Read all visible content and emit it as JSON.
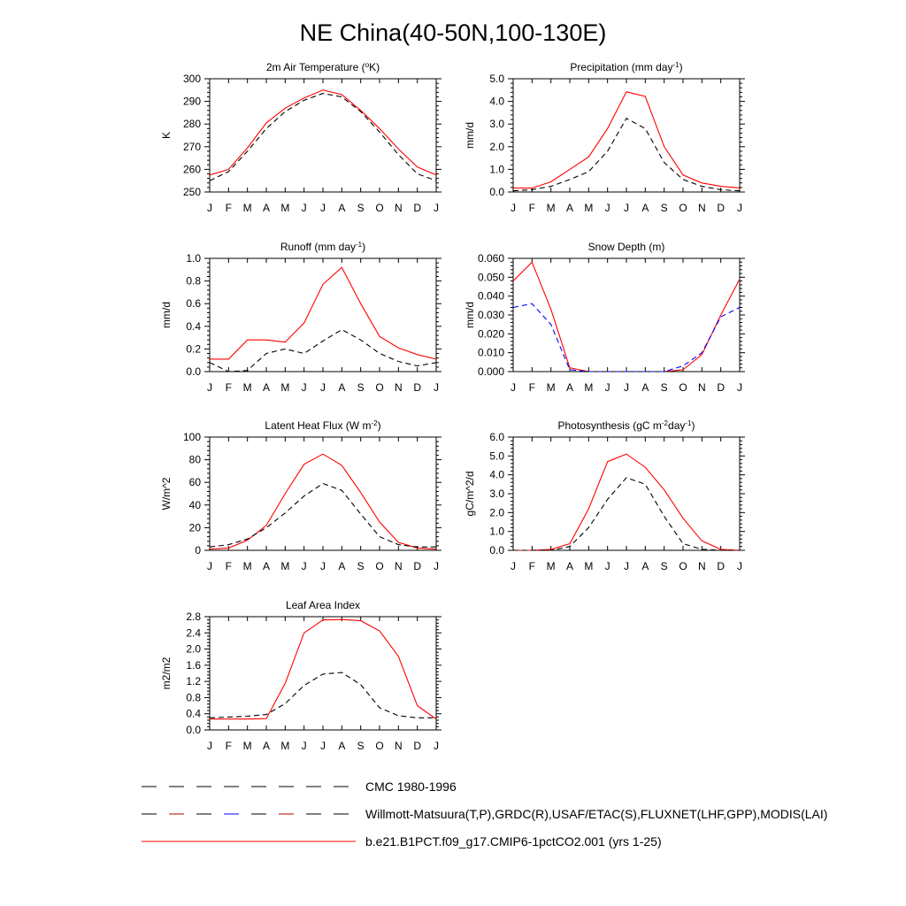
{
  "title": "NE China(40-50N,100-130E)",
  "months": [
    "J",
    "F",
    "M",
    "A",
    "M",
    "J",
    "J",
    "A",
    "S",
    "O",
    "N",
    "D",
    "J"
  ],
  "legend": [
    {
      "label": "CMC 1980-1996",
      "style": "cmc",
      "color": "#000000"
    },
    {
      "label": "Willmott-Matsuura(T,P),GRDC(R),USAF/ETAC(S),FLUXNET(LHF,GPP),MODIS(LAI)",
      "style": "obs",
      "color": "#000000",
      "color2": "#0000ff"
    },
    {
      "label": "b.e21.B1PCT.f09_g17.CMIP6-1pctCO2.001 (yrs 1-25)",
      "style": "model",
      "color": "#ff0000"
    }
  ],
  "colors": {
    "model": "#ff0000",
    "obs": "#000000",
    "cmc": "#0000ff"
  },
  "chart_data": [
    {
      "type": "line",
      "title": "2m Air Temperature (",
      "title_sup": "o",
      "title_post": "K)",
      "ylabel": "K",
      "ylim": [
        250,
        300
      ],
      "yticks": [
        250,
        260,
        270,
        280,
        290,
        300
      ],
      "yticklabels": [
        "250",
        "260",
        "270",
        "280",
        "290",
        "300"
      ],
      "series": [
        {
          "role": "model",
          "values": [
            257.5,
            260,
            269.5,
            280.5,
            287,
            291.5,
            295,
            293,
            286,
            278,
            269,
            261,
            257.5
          ]
        },
        {
          "role": "obs",
          "values": [
            255,
            259,
            268,
            278,
            285.5,
            290.5,
            293.5,
            292,
            285.5,
            276.5,
            266.5,
            258,
            255
          ]
        }
      ]
    },
    {
      "type": "line",
      "title": "Precipitation (mm day",
      "title_sup": "-1",
      "title_post": ")",
      "ylabel": "mm/d",
      "ylim": [
        0,
        5
      ],
      "yticks": [
        0,
        1,
        2,
        3,
        4,
        5
      ],
      "yticklabels": [
        "0.0",
        "1.0",
        "2.0",
        "3.0",
        "4.0",
        "5.0"
      ],
      "series": [
        {
          "role": "model",
          "values": [
            0.18,
            0.17,
            0.45,
            1.0,
            1.55,
            2.8,
            4.42,
            4.22,
            2.0,
            0.75,
            0.4,
            0.25,
            0.18
          ]
        },
        {
          "role": "obs",
          "values": [
            0.05,
            0.1,
            0.25,
            0.55,
            0.9,
            1.8,
            3.25,
            2.8,
            1.3,
            0.55,
            0.25,
            0.1,
            0.05
          ]
        }
      ]
    },
    {
      "type": "line",
      "title": "Runoff (mm day",
      "title_sup": "-1",
      "title_post": ")",
      "ylabel": "mm/d",
      "ylim": [
        0,
        1
      ],
      "yticks": [
        0,
        0.2,
        0.4,
        0.6,
        0.8,
        1.0
      ],
      "yticklabels": [
        "0.0",
        "0.2",
        "0.4",
        "0.6",
        "0.8",
        "1.0"
      ],
      "series": [
        {
          "role": "model",
          "values": [
            0.11,
            0.11,
            0.28,
            0.28,
            0.26,
            0.43,
            0.77,
            0.92,
            0.6,
            0.31,
            0.21,
            0.15,
            0.11
          ]
        },
        {
          "role": "obs",
          "values": [
            0.08,
            0.0,
            0.01,
            0.16,
            0.2,
            0.16,
            0.27,
            0.37,
            0.28,
            0.16,
            0.09,
            0.05,
            0.08
          ]
        }
      ]
    },
    {
      "type": "line",
      "title": "Snow Depth (m)",
      "title_sup": "",
      "title_post": "",
      "ylabel": "mm/d",
      "ylim": [
        0,
        0.06
      ],
      "yticks": [
        0,
        0.01,
        0.02,
        0.03,
        0.04,
        0.05,
        0.06
      ],
      "yticklabels": [
        "0.000",
        "0.010",
        "0.020",
        "0.030",
        "0.040",
        "0.050",
        "0.060"
      ],
      "series": [
        {
          "role": "model",
          "values": [
            0.048,
            0.058,
            0.033,
            0.002,
            0.0,
            0.0,
            0.0,
            0.0,
            0.0,
            0.001,
            0.009,
            0.03,
            0.049
          ]
        },
        {
          "role": "cmc",
          "values": [
            0.034,
            0.036,
            0.025,
            0.001,
            0.0,
            0.0,
            0.0,
            0.0,
            0.0,
            0.003,
            0.01,
            0.029,
            0.034
          ]
        },
        {
          "role": "obs",
          "values": [
            0.0,
            0.0,
            0.0,
            0.0,
            0.0,
            0.0,
            0.0,
            0.0,
            0.0,
            0.0,
            0.0,
            0.0,
            0.0
          ]
        }
      ]
    },
    {
      "type": "line",
      "title": "Latent Heat Flux (W m",
      "title_sup": "-2",
      "title_post": ")",
      "ylabel": "W/m^2",
      "ylim": [
        0,
        100
      ],
      "yticks": [
        0,
        20,
        40,
        60,
        80,
        100
      ],
      "yticklabels": [
        "0",
        "20",
        "40",
        "60",
        "80",
        "100"
      ],
      "series": [
        {
          "role": "model",
          "values": [
            1,
            2,
            9,
            22,
            50,
            76,
            85,
            75,
            51,
            25,
            7,
            2,
            1
          ]
        },
        {
          "role": "obs",
          "values": [
            3,
            5,
            10,
            20,
            33,
            48,
            59,
            53,
            32,
            12,
            5,
            3,
            3
          ]
        }
      ]
    },
    {
      "type": "line",
      "title": "Photosynthesis (gC m",
      "title_sup": "-2",
      "title_mid": "day",
      "title_sup2": "-1",
      "title_post": ")",
      "ylabel": "gC/m^2/d",
      "ylim": [
        0,
        6
      ],
      "yticks": [
        0,
        1,
        2,
        3,
        4,
        5,
        6
      ],
      "yticklabels": [
        "0.0",
        "1.0",
        "2.0",
        "3.0",
        "4.0",
        "5.0",
        "6.0"
      ],
      "series": [
        {
          "role": "model",
          "values": [
            0.0,
            0.0,
            0.05,
            0.35,
            2.2,
            4.7,
            5.1,
            4.4,
            3.2,
            1.7,
            0.5,
            0.05,
            0.0
          ]
        },
        {
          "role": "obs",
          "values": [
            0.0,
            0.0,
            0.0,
            0.2,
            1.2,
            2.7,
            3.85,
            3.5,
            1.8,
            0.35,
            0.05,
            0.0,
            0.0
          ]
        }
      ]
    },
    {
      "type": "line",
      "title": "Leaf Area Index",
      "title_sup": "",
      "title_post": "",
      "ylabel": "m2/m2",
      "ylim": [
        0,
        2.8
      ],
      "yticks": [
        0,
        0.4,
        0.8,
        1.2,
        1.6,
        2.0,
        2.4,
        2.8
      ],
      "yticklabels": [
        "0.0",
        "0.4",
        "0.8",
        "1.2",
        "1.6",
        "2.0",
        "2.4",
        "2.8"
      ],
      "series": [
        {
          "role": "model",
          "values": [
            0.27,
            0.27,
            0.27,
            0.28,
            1.15,
            2.4,
            2.72,
            2.73,
            2.7,
            2.45,
            1.82,
            0.6,
            0.27
          ]
        },
        {
          "role": "obs",
          "values": [
            0.3,
            0.32,
            0.34,
            0.38,
            0.65,
            1.1,
            1.38,
            1.42,
            1.12,
            0.55,
            0.35,
            0.3,
            0.3
          ]
        }
      ]
    }
  ]
}
